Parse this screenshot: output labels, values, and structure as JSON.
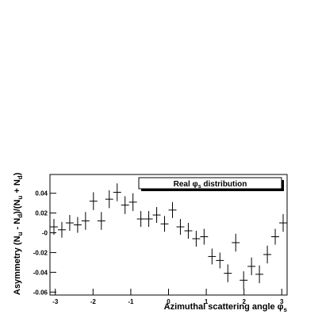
{
  "chart_data": {
    "type": "errorbar",
    "ylabel": [
      "Asymmetry (N",
      "u",
      " - N",
      "d",
      ")/(N",
      "u",
      " + N",
      "d",
      ")"
    ],
    "xlabel": [
      "Azimuthal scattering angle  φ",
      "s"
    ],
    "legend_text": [
      "Real φ",
      "s",
      " distribution"
    ],
    "x": [
      -3.037,
      -2.827,
      -2.618,
      -2.408,
      -2.199,
      -1.99,
      -1.78,
      -1.571,
      -1.361,
      -1.152,
      -0.942,
      -0.733,
      -0.524,
      -0.314,
      -0.105,
      0.105,
      0.314,
      0.524,
      0.733,
      0.942,
      1.152,
      1.361,
      1.571,
      1.78,
      1.99,
      2.199,
      2.408,
      2.618,
      2.827,
      3.037
    ],
    "bin_width": 0.2094,
    "values": [
      0.006,
      0.003,
      0.01,
      0.008,
      0.012,
      0.032,
      0.012,
      0.034,
      0.041,
      0.028,
      0.031,
      0.014,
      0.014,
      0.018,
      0.009,
      0.023,
      0.006,
      0.002,
      -0.006,
      -0.004,
      -0.024,
      -0.028,
      -0.041,
      -0.01,
      -0.048,
      -0.034,
      -0.042,
      -0.022,
      -0.004,
      0.01
    ],
    "errors": [
      0.008,
      0.008,
      0.008,
      0.008,
      0.009,
      0.009,
      0.009,
      0.009,
      0.009,
      0.009,
      0.009,
      0.008,
      0.008,
      0.008,
      0.008,
      0.008,
      0.008,
      0.008,
      0.008,
      0.008,
      0.008,
      0.008,
      0.009,
      0.009,
      0.009,
      0.009,
      0.009,
      0.009,
      0.008,
      0.009
    ],
    "color": "#000000",
    "xlim": [
      -3.1416,
      3.1416
    ],
    "xticks": [
      -3,
      -2,
      -1,
      0,
      1,
      2,
      3
    ],
    "ylim": [
      -0.063,
      0.059
    ],
    "yticks": [
      -0.06,
      -0.04,
      -0.02,
      {
        "value": 0,
        "label": "-0"
      },
      0.02,
      0.04
    ]
  }
}
